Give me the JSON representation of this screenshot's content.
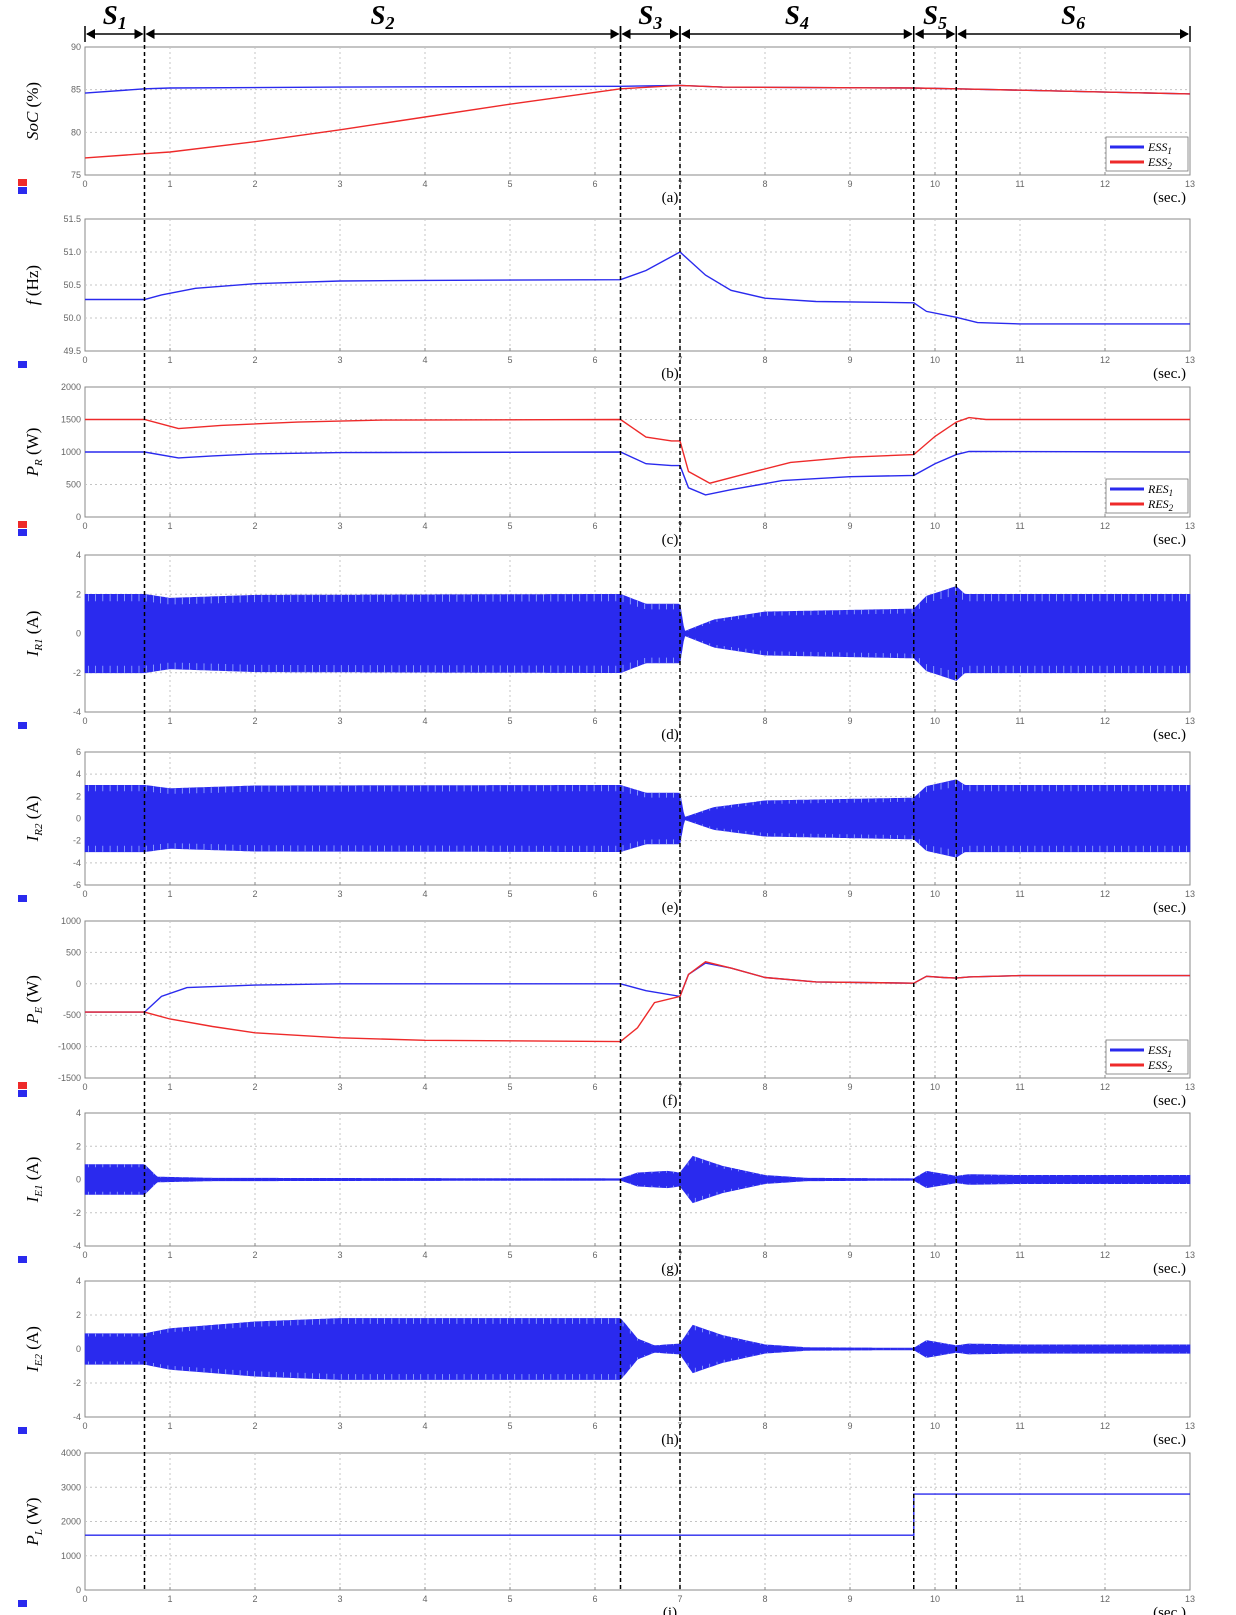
{
  "figure": {
    "time_unit": "(sec.)",
    "colors": {
      "blue": "#2a2aee",
      "red": "#ee2a2a",
      "grid": "#c4c4c4",
      "frame": "#8a8a8a"
    },
    "x_ticks": [
      0,
      1,
      2,
      3,
      4,
      5,
      6,
      7,
      8,
      9,
      10,
      11,
      12,
      13
    ],
    "x_range": [
      0,
      13
    ],
    "stages": [
      {
        "label": "S",
        "sub": "1",
        "t_start": 0,
        "t_end": 0.7
      },
      {
        "label": "S",
        "sub": "2",
        "t_start": 0.7,
        "t_end": 6.3
      },
      {
        "label": "S",
        "sub": "3",
        "t_start": 6.3,
        "t_end": 7.0
      },
      {
        "label": "S",
        "sub": "4",
        "t_start": 7.0,
        "t_end": 9.75
      },
      {
        "label": "S",
        "sub": "5",
        "t_start": 9.75,
        "t_end": 10.25
      },
      {
        "label": "S",
        "sub": "6",
        "t_start": 10.25,
        "t_end": 13
      }
    ],
    "stage_boundaries": [
      0.7,
      6.3,
      7.0,
      9.75,
      10.25
    ]
  },
  "chart_data": [
    {
      "id": "a",
      "type": "line",
      "caption": "(a)",
      "ylabel": {
        "main": "SoC",
        "sub": "",
        "unit": " (%)"
      },
      "ylim": [
        75,
        90
      ],
      "yticks": [
        "75",
        "80",
        "85",
        "90"
      ],
      "grid": true,
      "legend_position": "bottom-right",
      "series": [
        {
          "name": "ESS",
          "name_sub": "1",
          "color": "blue",
          "points": [
            [
              0,
              84.6
            ],
            [
              0.7,
              85.1
            ],
            [
              1,
              85.2
            ],
            [
              3,
              85.3
            ],
            [
              6.3,
              85.4
            ],
            [
              7,
              85.5
            ],
            [
              7.5,
              85.3
            ],
            [
              9.75,
              85.2
            ],
            [
              10.25,
              85.1
            ],
            [
              13,
              84.5
            ]
          ]
        },
        {
          "name": "ESS",
          "name_sub": "2",
          "color": "red",
          "points": [
            [
              0,
              77.0
            ],
            [
              0.7,
              77.5
            ],
            [
              1,
              77.7
            ],
            [
              2,
              78.9
            ],
            [
              3,
              80.3
            ],
            [
              4,
              81.8
            ],
            [
              5,
              83.3
            ],
            [
              6.3,
              85.1
            ],
            [
              7,
              85.5
            ],
            [
              7.5,
              85.3
            ],
            [
              9.75,
              85.2
            ],
            [
              10.25,
              85.1
            ],
            [
              13,
              84.5
            ]
          ]
        }
      ]
    },
    {
      "id": "b",
      "type": "line",
      "caption": "(b)",
      "ylabel": {
        "main": "f",
        "sub": "",
        "unit": " (Hz)"
      },
      "ylim": [
        49.5,
        51.5
      ],
      "yticks": [
        "49.5",
        "50.0",
        "50.5",
        "51.0",
        "51.5"
      ],
      "grid": true,
      "series": [
        {
          "name": "",
          "color": "blue",
          "points": [
            [
              0,
              50.28
            ],
            [
              0.7,
              50.28
            ],
            [
              0.9,
              50.35
            ],
            [
              1.3,
              50.45
            ],
            [
              2,
              50.52
            ],
            [
              3,
              50.56
            ],
            [
              4,
              50.57
            ],
            [
              6.3,
              50.58
            ],
            [
              6.6,
              50.72
            ],
            [
              7,
              51.0
            ],
            [
              7.3,
              50.65
            ],
            [
              7.6,
              50.42
            ],
            [
              8,
              50.3
            ],
            [
              8.6,
              50.25
            ],
            [
              9.75,
              50.23
            ],
            [
              9.9,
              50.1
            ],
            [
              10.25,
              50.01
            ],
            [
              10.5,
              49.93
            ],
            [
              11,
              49.91
            ],
            [
              13,
              49.91
            ]
          ]
        }
      ]
    },
    {
      "id": "c",
      "type": "line",
      "caption": "(c)",
      "ylabel": {
        "main": "P",
        "sub": "R",
        "unit": " (W)"
      },
      "ylim": [
        0,
        2000
      ],
      "yticks": [
        "0",
        "500",
        "1000",
        "1500",
        "2000"
      ],
      "grid": true,
      "legend_position": "bottom-right",
      "series": [
        {
          "name": "RES",
          "name_sub": "1",
          "color": "blue",
          "points": [
            [
              0,
              1000
            ],
            [
              0.7,
              1000
            ],
            [
              1.1,
              910
            ],
            [
              1.5,
              940
            ],
            [
              2,
              970
            ],
            [
              3,
              990
            ],
            [
              6.3,
              1000
            ],
            [
              6.6,
              820
            ],
            [
              6.9,
              790
            ],
            [
              7.0,
              790
            ],
            [
              7.1,
              450
            ],
            [
              7.3,
              340
            ],
            [
              7.6,
              420
            ],
            [
              8.2,
              560
            ],
            [
              9,
              620
            ],
            [
              9.75,
              640
            ],
            [
              10.0,
              820
            ],
            [
              10.25,
              960
            ],
            [
              10.4,
              1010
            ],
            [
              13,
              1000
            ]
          ]
        },
        {
          "name": "RES",
          "name_sub": "2",
          "color": "red",
          "points": [
            [
              0,
              1500
            ],
            [
              0.7,
              1500
            ],
            [
              1.1,
              1360
            ],
            [
              1.6,
              1410
            ],
            [
              2.5,
              1460
            ],
            [
              3.5,
              1490
            ],
            [
              6.3,
              1500
            ],
            [
              6.6,
              1230
            ],
            [
              6.9,
              1170
            ],
            [
              7.0,
              1170
            ],
            [
              7.1,
              700
            ],
            [
              7.35,
              520
            ],
            [
              7.7,
              640
            ],
            [
              8.3,
              840
            ],
            [
              9,
              920
            ],
            [
              9.75,
              960
            ],
            [
              10.0,
              1240
            ],
            [
              10.25,
              1460
            ],
            [
              10.4,
              1530
            ],
            [
              10.6,
              1500
            ],
            [
              13,
              1500
            ]
          ]
        }
      ]
    },
    {
      "id": "d",
      "type": "area",
      "caption": "(d)",
      "ylabel": {
        "main": "I",
        "sub": "R1",
        "unit": " (A)"
      },
      "ylim": [
        -4,
        4
      ],
      "yticks": [
        "-4",
        "-2",
        "0",
        "2",
        "4"
      ],
      "grid": true,
      "series": [
        {
          "name": "",
          "color": "blue",
          "style": "envelope",
          "points": [
            [
              0,
              2.0
            ],
            [
              0.7,
              2.0
            ],
            [
              1.0,
              1.8
            ],
            [
              2,
              1.95
            ],
            [
              6.3,
              2.0
            ],
            [
              6.6,
              1.5
            ],
            [
              7.0,
              1.5
            ],
            [
              7.05,
              0.1
            ],
            [
              7.4,
              0.7
            ],
            [
              8,
              1.1
            ],
            [
              9.75,
              1.25
            ],
            [
              9.9,
              1.9
            ],
            [
              10.25,
              2.4
            ],
            [
              10.35,
              2.0
            ],
            [
              13,
              2.0
            ]
          ]
        }
      ]
    },
    {
      "id": "e",
      "type": "area",
      "caption": "(e)",
      "ylabel": {
        "main": "I",
        "sub": "R2",
        "unit": " (A)"
      },
      "ylim": [
        -6,
        6
      ],
      "yticks": [
        "-6",
        "-4",
        "-2",
        "0",
        "2",
        "4",
        "6"
      ],
      "grid": true,
      "series": [
        {
          "name": "",
          "color": "blue",
          "style": "envelope",
          "points": [
            [
              0,
              3.0
            ],
            [
              0.7,
              3.0
            ],
            [
              1.0,
              2.7
            ],
            [
              2,
              2.95
            ],
            [
              6.3,
              3.0
            ],
            [
              6.6,
              2.3
            ],
            [
              7.0,
              2.3
            ],
            [
              7.05,
              0.1
            ],
            [
              7.4,
              1.0
            ],
            [
              8,
              1.6
            ],
            [
              9.75,
              1.85
            ],
            [
              9.9,
              2.9
            ],
            [
              10.25,
              3.5
            ],
            [
              10.35,
              3.0
            ],
            [
              13,
              3.0
            ]
          ]
        }
      ]
    },
    {
      "id": "f",
      "type": "line",
      "caption": "(f)",
      "ylabel": {
        "main": "P",
        "sub": "E",
        "unit": " (W)"
      },
      "ylim": [
        -1500,
        1000
      ],
      "yticks": [
        "-1500",
        "-1000",
        "-500",
        "0",
        "500",
        "1000"
      ],
      "grid": true,
      "legend_position": "bottom-right",
      "series": [
        {
          "name": "ESS",
          "name_sub": "1",
          "color": "blue",
          "points": [
            [
              0,
              -450
            ],
            [
              0.7,
              -450
            ],
            [
              0.9,
              -200
            ],
            [
              1.2,
              -60
            ],
            [
              2,
              -20
            ],
            [
              3,
              0
            ],
            [
              6.3,
              0
            ],
            [
              6.6,
              -110
            ],
            [
              7.0,
              -200
            ],
            [
              7.1,
              150
            ],
            [
              7.3,
              330
            ],
            [
              7.6,
              250
            ],
            [
              8,
              100
            ],
            [
              8.6,
              30
            ],
            [
              9.75,
              10
            ],
            [
              9.9,
              120
            ],
            [
              10.1,
              100
            ],
            [
              10.25,
              90
            ],
            [
              10.4,
              110
            ],
            [
              11,
              130
            ],
            [
              13,
              130
            ]
          ]
        },
        {
          "name": "ESS",
          "name_sub": "2",
          "color": "red",
          "points": [
            [
              0,
              -450
            ],
            [
              0.7,
              -450
            ],
            [
              1.0,
              -560
            ],
            [
              1.5,
              -680
            ],
            [
              2,
              -780
            ],
            [
              3,
              -860
            ],
            [
              4,
              -900
            ],
            [
              6.3,
              -920
            ],
            [
              6.5,
              -700
            ],
            [
              6.7,
              -300
            ],
            [
              7.0,
              -200
            ],
            [
              7.1,
              150
            ],
            [
              7.3,
              350
            ],
            [
              7.6,
              250
            ],
            [
              8,
              100
            ],
            [
              8.6,
              30
            ],
            [
              9.75,
              10
            ],
            [
              9.9,
              120
            ],
            [
              10.1,
              100
            ],
            [
              10.25,
              90
            ],
            [
              10.4,
              110
            ],
            [
              11,
              130
            ],
            [
              13,
              130
            ]
          ]
        }
      ]
    },
    {
      "id": "g",
      "type": "area",
      "caption": "(g)",
      "ylabel": {
        "main": "I",
        "sub": "E1",
        "unit": " (A)"
      },
      "ylim": [
        -4,
        4
      ],
      "yticks": [
        "-4",
        "-2",
        "0",
        "2",
        "4"
      ],
      "grid": true,
      "series": [
        {
          "name": "",
          "color": "blue",
          "style": "envelope",
          "points": [
            [
              0,
              0.9
            ],
            [
              0.7,
              0.9
            ],
            [
              0.85,
              0.15
            ],
            [
              1.5,
              0.08
            ],
            [
              6.3,
              0.05
            ],
            [
              6.5,
              0.4
            ],
            [
              6.85,
              0.5
            ],
            [
              7.0,
              0.4
            ],
            [
              7.15,
              1.4
            ],
            [
              7.5,
              0.8
            ],
            [
              8,
              0.25
            ],
            [
              8.5,
              0.08
            ],
            [
              9.75,
              0.05
            ],
            [
              9.9,
              0.5
            ],
            [
              10.25,
              0.2
            ],
            [
              10.4,
              0.3
            ],
            [
              11,
              0.25
            ],
            [
              13,
              0.25
            ]
          ]
        }
      ]
    },
    {
      "id": "h",
      "type": "area",
      "caption": "(h)",
      "ylabel": {
        "main": "I",
        "sub": "E2",
        "unit": " (A)"
      },
      "ylim": [
        -4,
        4
      ],
      "yticks": [
        "-4",
        "-2",
        "0",
        "2",
        "4"
      ],
      "grid": true,
      "series": [
        {
          "name": "",
          "color": "blue",
          "style": "envelope",
          "points": [
            [
              0,
              0.9
            ],
            [
              0.7,
              0.9
            ],
            [
              1.0,
              1.2
            ],
            [
              2,
              1.6
            ],
            [
              3,
              1.8
            ],
            [
              6.3,
              1.8
            ],
            [
              6.5,
              0.6
            ],
            [
              6.7,
              0.2
            ],
            [
              7.0,
              0.3
            ],
            [
              7.15,
              1.4
            ],
            [
              7.5,
              0.8
            ],
            [
              8,
              0.25
            ],
            [
              8.5,
              0.08
            ],
            [
              9.75,
              0.05
            ],
            [
              9.9,
              0.5
            ],
            [
              10.25,
              0.2
            ],
            [
              10.4,
              0.3
            ],
            [
              11,
              0.25
            ],
            [
              13,
              0.25
            ]
          ]
        }
      ]
    },
    {
      "id": "i",
      "type": "line",
      "caption": "(i)",
      "ylabel": {
        "main": "P",
        "sub": "L",
        "unit": " (W)"
      },
      "ylim": [
        0,
        4000
      ],
      "yticks": [
        "0",
        "1000",
        "2000",
        "3000",
        "4000"
      ],
      "grid": true,
      "series": [
        {
          "name": "",
          "color": "blue",
          "points": [
            [
              0,
              1600
            ],
            [
              9.75,
              1600
            ],
            [
              9.75,
              2800
            ],
            [
              13,
              2800
            ]
          ]
        }
      ]
    }
  ]
}
